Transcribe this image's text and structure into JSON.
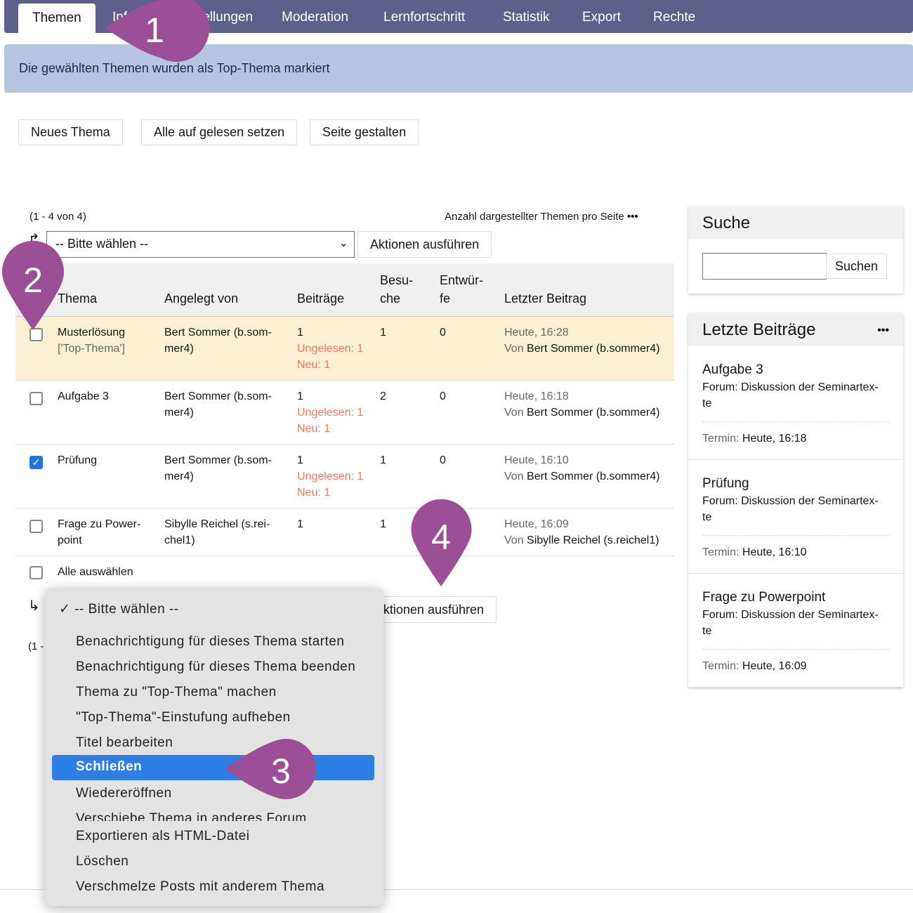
{
  "nav": {
    "tabs": [
      "Themen",
      "Info",
      "Einstellungen",
      "Moderation",
      "Lernfortschritt",
      "Statistik",
      "Export",
      "Rechte"
    ],
    "active": "Themen"
  },
  "message": "Die gewählten Themen wurden als Top-Thema markiert",
  "toolbar": {
    "new_topic": "Neues Thema",
    "mark_read": "Alle auf gelesen setzen",
    "design": "Seite gestalten"
  },
  "list": {
    "range": "(1 - 4 von 4)",
    "per_page": "Anzahl dargestellter Themen pro Seite",
    "per_page_icon": "ellipsis-icon",
    "select_value": "-- Bitte wählen --",
    "execute": "Aktionen ausführen",
    "select_all": "Alle auswählen",
    "bottom_range": "(1 -"
  },
  "table": {
    "headers": [
      "Thema",
      "Angelegt von",
      "Beiträge",
      "Besu-\nche",
      "Entwür-\nfe",
      "Letzter Beitrag"
    ],
    "rows": [
      {
        "topic": "Musterlösung",
        "tag": "['Top-Thema']",
        "author": "Bert Sommer (b.som-\nmer4)",
        "posts": "1",
        "unread": "Ungelesen: 1",
        "new": "Neu: 1",
        "visits": "1",
        "drafts": "0",
        "last_date": "Heute, 16:28",
        "last_by": "Von",
        "last_user": "Bert Sommer (b.sommer4)",
        "checked": false,
        "highlight": true
      },
      {
        "topic": "Aufgabe 3",
        "tag": "",
        "author": "Bert Sommer (b.som-\nmer4)",
        "posts": "1",
        "unread": "Ungelesen: 1",
        "new": "Neu: 1",
        "visits": "2",
        "drafts": "0",
        "last_date": "Heute, 16:18",
        "last_by": "Von",
        "last_user": "Bert Sommer (b.sommer4)",
        "checked": false,
        "highlight": false
      },
      {
        "topic": "Prüfung",
        "tag": "",
        "author": "Bert Sommer (b.som-\nmer4)",
        "posts": "1",
        "unread": "Ungelesen: 1",
        "new": "Neu: 1",
        "visits": "1",
        "drafts": "0",
        "last_date": "Heute, 16:10",
        "last_by": "Von",
        "last_user": "Bert Sommer (b.sommer4)",
        "checked": true,
        "highlight": false
      },
      {
        "topic": "Frage zu Power-\npoint",
        "tag": "",
        "author": "Sibylle Reichel (s.rei-\nchel1)",
        "posts": "1",
        "unread": "",
        "new": "",
        "visits": "1",
        "drafts": "",
        "last_date": "Heute, 16:09",
        "last_by": "Von",
        "last_user": "Sibylle Reichel (s.reichel1)",
        "checked": false,
        "highlight": false
      }
    ]
  },
  "search": {
    "title": "Suche",
    "button": "Suchen",
    "value": ""
  },
  "recent": {
    "title": "Letzte Beiträge",
    "menu_icon": "ellipsis-icon",
    "term_label": "Termin:",
    "items": [
      {
        "title": "Aufgabe 3",
        "forum": "Forum: Diskussion der Seminartex-\nte",
        "date": "Heute, 16:18"
      },
      {
        "title": "Prüfung",
        "forum": "Forum: Diskussion der Seminartex-\nte",
        "date": "Heute, 16:10"
      },
      {
        "title": "Frage zu Powerpoint",
        "forum": "Forum: Diskussion der Seminartex-\nte",
        "date": "Heute, 16:09"
      }
    ]
  },
  "dropdown": {
    "selected": "-- Bitte wählen --",
    "options": [
      "Benachrichtigung für dieses Thema starten",
      "Benachrichtigung für dieses Thema beenden",
      "Thema zu \"Top-Thema\" machen",
      "\"Top-Thema\"-Einstufung aufheben",
      "Titel bearbeiten",
      "Schließen",
      "Wiedereröffnen",
      "Verschiebe Thema in anderes Forum",
      "Exportieren als HTML-Datei",
      "Löschen",
      "Verschmelze Posts mit anderem Thema"
    ],
    "highlighted": "Schließen"
  },
  "markers": [
    "1",
    "2",
    "3",
    "4"
  ],
  "colors": {
    "nav": "#5e5f8a",
    "message": "#b7c5e1",
    "highlight_row": "#fbf0d3",
    "orange": "#f2795a",
    "marker": "#9c4f96",
    "menu_selection": "#2d7fe6"
  }
}
